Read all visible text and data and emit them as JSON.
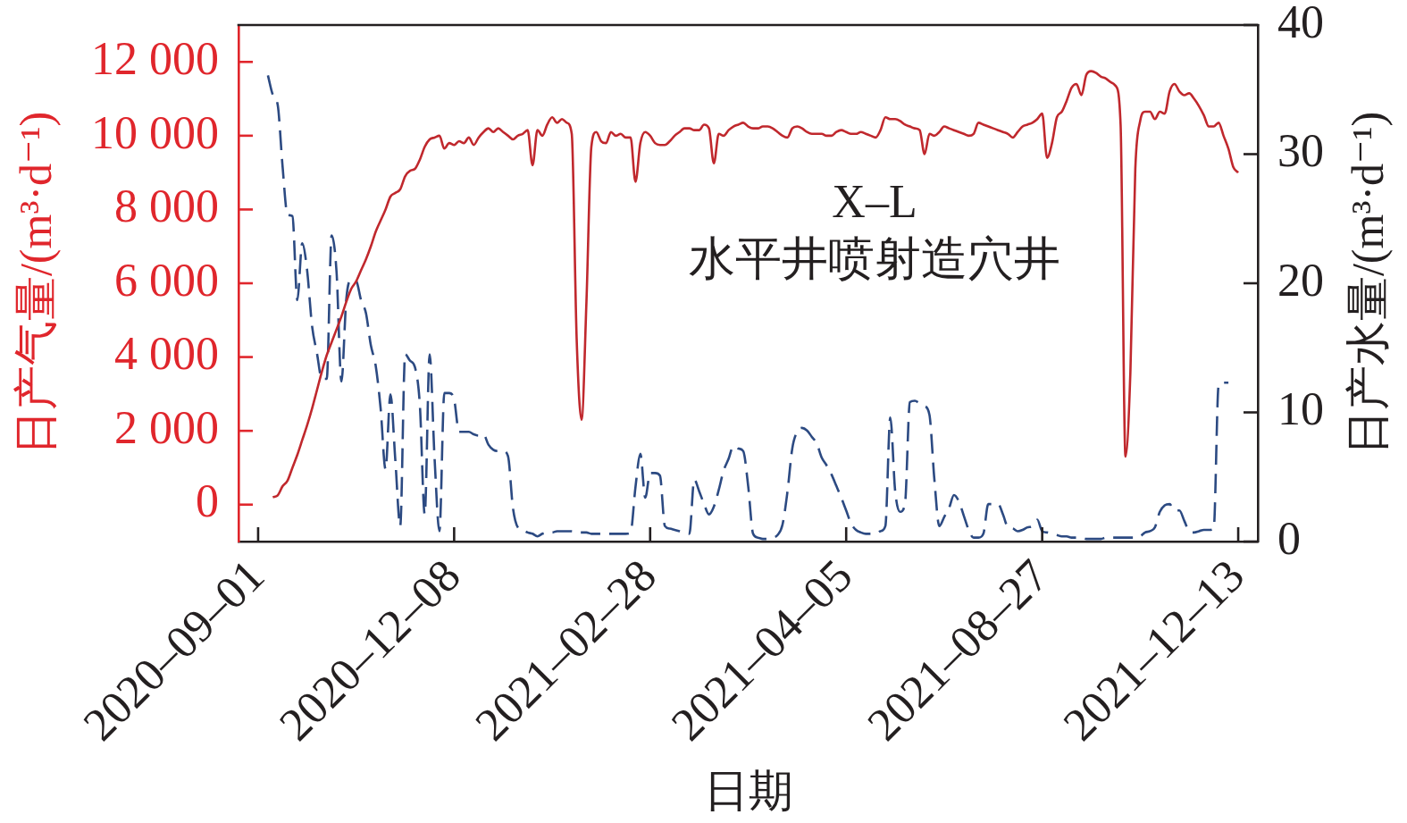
{
  "chart_data": {
    "type": "line",
    "xlabel": "日期",
    "ylabel": "日产气量/(m³·d⁻¹)",
    "y2label": "日产水量/(m³·d⁻¹)",
    "annotations": [
      "X–L",
      "水平井喷射造穴井"
    ],
    "categories": [
      null,
      null,
      null,
      null,
      "2020–09–01",
      null,
      null,
      null,
      null,
      null,
      null,
      null,
      null,
      null,
      null,
      null,
      null,
      null,
      null,
      null,
      null,
      null,
      null,
      null,
      null,
      null,
      null,
      null,
      null,
      null,
      null,
      null,
      null,
      null,
      null,
      null,
      null,
      null,
      null,
      null,
      null,
      null,
      null,
      null,
      "2020–12–08",
      null,
      null,
      null,
      null,
      null,
      null,
      null,
      null,
      null,
      null,
      null,
      null,
      null,
      null,
      null,
      null,
      null,
      null,
      null,
      null,
      null,
      null,
      null,
      null,
      null,
      null,
      null,
      null,
      null,
      null,
      null,
      null,
      null,
      null,
      null,
      null,
      null,
      null,
      null,
      "2021–02–28",
      null,
      null,
      null,
      null,
      null,
      null,
      null,
      null,
      null,
      null,
      null,
      null,
      null,
      null,
      null,
      null,
      null,
      null,
      null,
      null,
      null,
      null,
      null,
      null,
      null,
      null,
      null,
      null,
      null,
      null,
      null,
      null,
      null,
      null,
      null,
      null,
      null,
      null,
      null,
      "2021–04–05",
      null,
      null,
      null,
      null,
      null,
      null,
      null,
      null,
      null,
      null,
      null,
      null,
      null,
      null,
      null,
      null,
      null,
      null,
      null,
      null,
      null,
      null,
      null,
      null,
      null,
      null,
      null,
      null,
      null,
      null,
      null,
      null,
      null,
      null,
      null,
      null,
      null,
      null,
      null,
      "2021–08–27",
      null,
      null,
      null,
      null,
      null,
      null,
      null,
      null,
      null,
      null,
      null,
      null,
      null,
      null,
      null,
      null,
      null,
      null,
      null,
      null,
      null,
      null,
      null,
      null,
      null,
      null,
      null,
      null,
      null,
      null,
      null,
      null,
      null,
      null,
      null,
      null,
      null,
      null,
      null,
      "2021–12–13",
      null,
      null,
      null,
      null
    ],
    "ylim": [
      -1000,
      13000
    ],
    "yticks": [
      0,
      {
        "value": 2000,
        "label": "2 000"
      },
      {
        "value": 4000,
        "label": "4 000"
      },
      {
        "value": 6000,
        "label": "6 000"
      },
      {
        "value": 8000,
        "label": "8 000"
      },
      {
        "value": 10000,
        "label": "10 000"
      },
      {
        "value": 12000,
        "label": "12 000"
      }
    ],
    "y2lim": [
      0,
      40
    ],
    "y2ticks": [
      0,
      10,
      20,
      30,
      40
    ],
    "marker": "none",
    "series": [
      {
        "color": "#c0282d",
        "axis": "y",
        "line_style": "solid",
        "values": [
          null,
          null,
          null,
          null,
          null,
          null,
          null,
          200,
          250,
          500,
          650,
          1000,
          1350,
          1750,
          2150,
          2600,
          3100,
          3600,
          4050,
          4400,
          4750,
          5100,
          5500,
          5850,
          6050,
          6350,
          6650,
          7000,
          7400,
          7700,
          8000,
          8350,
          8450,
          8550,
          8900,
          9050,
          9100,
          9350,
          9700,
          9900,
          9950,
          10000,
          9650,
          9800,
          9750,
          9850,
          9800,
          9950,
          9750,
          9950,
          10100,
          10200,
          10100,
          10200,
          10100,
          10000,
          9900,
          10000,
          10050,
          10150,
          9200,
          10150,
          10000,
          10300,
          10500,
          10350,
          10450,
          10350,
          10050,
          4500,
          2300,
          5500,
          9700,
          10100,
          9850,
          9800,
          10100,
          10000,
          10050,
          9950,
          9950,
          8750,
          9800,
          10100,
          10000,
          9800,
          9750,
          9750,
          9850,
          10000,
          10100,
          10200,
          10200,
          10150,
          10150,
          10300,
          10200,
          9250,
          10050,
          10000,
          10150,
          10250,
          10300,
          10350,
          10250,
          10200,
          10200,
          10250,
          10250,
          10200,
          10100,
          10000,
          9950,
          10200,
          10250,
          10200,
          10100,
          10050,
          10050,
          10050,
          10000,
          10000,
          10100,
          10150,
          10100,
          10050,
          10050,
          10100,
          10050,
          10000,
          9950,
          10150,
          10500,
          10450,
          10450,
          10400,
          10300,
          10250,
          10200,
          10150,
          9500,
          10050,
          10000,
          10100,
          10250,
          10200,
          10150,
          10100,
          10050,
          10000,
          10050,
          10350,
          10300,
          10250,
          10200,
          10150,
          10100,
          10050,
          9950,
          10100,
          10250,
          10300,
          10350,
          10450,
          10600,
          9400,
          9800,
          10500,
          10650,
          10950,
          11300,
          11400,
          11100,
          11650,
          11750,
          11700,
          11600,
          11550,
          11450,
          11350,
          10300,
          1300,
          3600,
          9100,
          10400,
          10650,
          10650,
          10450,
          10650,
          10600,
          11200,
          11400,
          11200,
          11100,
          11150,
          11000,
          10800,
          10550,
          10250,
          10250,
          10350,
          10000,
          9650,
          9150,
          9000,
          null,
          null,
          null,
          null
        ]
      },
      {
        "color": "#2c4a82",
        "axis": "y2",
        "line_style": "dashed",
        "values": [
          null,
          null,
          null,
          null,
          null,
          null,
          36.1,
          34.6,
          33.8,
          29.0,
          25.3,
          25.2,
          18.7,
          23.1,
          21.0,
          16.7,
          14.6,
          12.6,
          12.6,
          23.7,
          20.9,
          12.4,
          18.8,
          20.3,
          20.2,
          18.7,
          17.7,
          15.2,
          13.6,
          10.3,
          5.6,
          11.4,
          6.3,
          1.2,
          14.5,
          14.0,
          13.5,
          10.6,
          2.1,
          14.5,
          6.5,
          0.8,
          11.5,
          11.5,
          11.0,
          8.5,
          8.5,
          8.5,
          8.3,
          8.2,
          8.3,
          7.5,
          7.1,
          7.0,
          7.0,
          6.6,
          2.6,
          1.1,
          0.9,
          0.7,
          0.6,
          0.4,
          0.6,
          0.7,
          0.7,
          0.8,
          0.8,
          0.8,
          0.8,
          0.7,
          0.7,
          0.7,
          0.6,
          0.6,
          0.6,
          0.6,
          0.6,
          0.6,
          0.6,
          0.6,
          0.7,
          4.2,
          6.8,
          3.4,
          5.3,
          5.3,
          5.1,
          1.2,
          1.0,
          0.9,
          0.8,
          0.7,
          0.6,
          4.8,
          3.9,
          2.9,
          2.1,
          2.7,
          4.0,
          5.5,
          6.4,
          7.4,
          7.2,
          7.0,
          4.3,
          0.6,
          0.3,
          0.2,
          0.2,
          0.3,
          0.5,
          1.3,
          3.8,
          7.2,
          8.5,
          8.8,
          8.6,
          8.1,
          7.6,
          6.5,
          5.9,
          5.2,
          4.3,
          3.4,
          2.4,
          1.4,
          0.9,
          0.7,
          0.6,
          0.6,
          0.6,
          0.8,
          1.2,
          9.6,
          3.9,
          2.3,
          2.9,
          10.8,
          10.9,
          10.7,
          10.5,
          9.8,
          4.8,
          1.2,
          1.9,
          2.6,
          3.6,
          3.1,
          2.0,
          0.9,
          0.3,
          0.3,
          0.6,
          2.9,
          2.9,
          2.9,
          2.1,
          1.1,
          1.0,
          0.8,
          0.9,
          1.1,
          1.2,
          1.7,
          0.8,
          0.7,
          0.6,
          0.5,
          0.4,
          0.4,
          0.3,
          0.3,
          0.3,
          0.2,
          0.2,
          0.2,
          0.2,
          0.3,
          0.3,
          0.3,
          0.3,
          0.3,
          0.3,
          0.3,
          0.4,
          0.7,
          0.8,
          1.1,
          2.3,
          2.8,
          2.9,
          2.4,
          2.4,
          1.6,
          0.8,
          0.7,
          0.8,
          0.9,
          0.9,
          1.0,
          12.1,
          12.3,
          12.3,
          null,
          null,
          null,
          null,
          null,
          null
        ]
      }
    ]
  }
}
